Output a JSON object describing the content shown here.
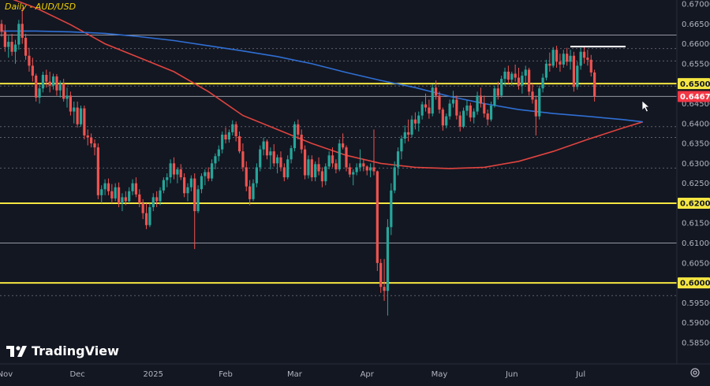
{
  "title": "Daily - AUD/USD",
  "brand": {
    "name": "TradingView"
  },
  "icons": {
    "logo": "tradingview-logo-icon",
    "settings": "settings-gear-icon",
    "cursor": "mouse-cursor-icon"
  },
  "colors": {
    "background": "#131722",
    "up": "#26a69a",
    "down": "#ef5350",
    "ma_red": "#e0443f",
    "ma_blue": "#2f6fd4",
    "yellow_line": "#f5e642",
    "white_line": "#ffffff",
    "axis_text": "#b2b5be"
  },
  "chart_data": {
    "type": "candlestick",
    "timeframe": "Daily",
    "symbol": "AUD/USD",
    "y_axis": {
      "min": 0.5835,
      "max": 0.6715,
      "ticks": [
        "0.67000",
        "0.66500",
        "0.66000",
        "0.65500",
        "0.65000",
        "0.64500",
        "0.64000",
        "0.63500",
        "0.63000",
        "0.62500",
        "0.62000",
        "0.61500",
        "0.61000",
        "0.60500",
        "0.60000",
        "0.59500",
        "0.59000",
        "0.58500"
      ]
    },
    "x_axis": {
      "labels": [
        {
          "label": "Nov",
          "index": 1
        },
        {
          "label": "Dec",
          "index": 22
        },
        {
          "label": "2025",
          "index": 44
        },
        {
          "label": "Feb",
          "index": 65
        },
        {
          "label": "Mar",
          "index": 85
        },
        {
          "label": "Apr",
          "index": 106
        },
        {
          "label": "May",
          "index": 127
        },
        {
          "label": "Jun",
          "index": 148
        },
        {
          "label": "Jul",
          "index": 168
        }
      ]
    },
    "price_badges": [
      {
        "label": "0.65000",
        "value": 0.65,
        "style": "yellow"
      },
      {
        "label": "0.64678",
        "value": 0.64678,
        "style": "red"
      },
      {
        "label": "0.62000",
        "value": 0.62,
        "style": "yellow"
      },
      {
        "label": "0.60000",
        "value": 0.6,
        "style": "yellow"
      }
    ],
    "horizontal_levels": [
      {
        "value": 0.65,
        "kind": "yellow"
      },
      {
        "value": 0.62,
        "kind": "yellow"
      },
      {
        "value": 0.6,
        "kind": "yellow"
      },
      {
        "value": 0.6622,
        "kind": "white-thin"
      },
      {
        "value": 0.6588,
        "kind": "dotted"
      },
      {
        "value": 0.6557,
        "kind": "dotted"
      },
      {
        "value": 0.6494,
        "kind": "dotted"
      },
      {
        "value": 0.6468,
        "kind": "white-thin"
      },
      {
        "value": 0.6392,
        "kind": "dotted"
      },
      {
        "value": 0.6365,
        "kind": "dotted"
      },
      {
        "value": 0.6288,
        "kind": "dotted"
      },
      {
        "value": 0.61,
        "kind": "white-thin"
      },
      {
        "value": 0.5968,
        "kind": "dotted"
      }
    ],
    "resistance_segment": {
      "from_index": 165,
      "to_index": 181,
      "value": 0.6593
    },
    "ohlc": [
      [
        0.665,
        0.666,
        0.6618,
        0.663
      ],
      [
        0.663,
        0.6648,
        0.658,
        0.6592
      ],
      [
        0.6592,
        0.662,
        0.6565,
        0.6605
      ],
      [
        0.6605,
        0.6625,
        0.657,
        0.658
      ],
      [
        0.658,
        0.661,
        0.655,
        0.6598
      ],
      [
        0.6598,
        0.666,
        0.6585,
        0.665
      ],
      [
        0.665,
        0.669,
        0.66,
        0.6615
      ],
      [
        0.6615,
        0.6625,
        0.656,
        0.657
      ],
      [
        0.657,
        0.659,
        0.653,
        0.6545
      ],
      [
        0.6545,
        0.6565,
        0.6505,
        0.652
      ],
      [
        0.652,
        0.6525,
        0.6455,
        0.6465
      ],
      [
        0.6465,
        0.65,
        0.645,
        0.6488
      ],
      [
        0.6488,
        0.653,
        0.6478,
        0.6522
      ],
      [
        0.6522,
        0.6535,
        0.649,
        0.6505
      ],
      [
        0.6505,
        0.653,
        0.6478,
        0.6495
      ],
      [
        0.6495,
        0.6525,
        0.6485,
        0.6518
      ],
      [
        0.6518,
        0.6524,
        0.647,
        0.6483
      ],
      [
        0.6483,
        0.6508,
        0.6465,
        0.65
      ],
      [
        0.65,
        0.6512,
        0.6455,
        0.6462
      ],
      [
        0.6462,
        0.649,
        0.644,
        0.647
      ],
      [
        0.647,
        0.648,
        0.642,
        0.643
      ],
      [
        0.643,
        0.6455,
        0.64,
        0.644
      ],
      [
        0.644,
        0.6455,
        0.639,
        0.6398
      ],
      [
        0.6398,
        0.6445,
        0.6392,
        0.6438
      ],
      [
        0.6438,
        0.6445,
        0.636,
        0.637
      ],
      [
        0.637,
        0.6385,
        0.6345,
        0.6365
      ],
      [
        0.6365,
        0.6375,
        0.634,
        0.635
      ],
      [
        0.635,
        0.636,
        0.632,
        0.634
      ],
      [
        0.634,
        0.635,
        0.621,
        0.622
      ],
      [
        0.622,
        0.6245,
        0.62,
        0.6235
      ],
      [
        0.6235,
        0.626,
        0.622,
        0.625
      ],
      [
        0.625,
        0.6262,
        0.622,
        0.623
      ],
      [
        0.623,
        0.6248,
        0.62,
        0.6212
      ],
      [
        0.6212,
        0.625,
        0.6205,
        0.624
      ],
      [
        0.624,
        0.6252,
        0.619,
        0.62
      ],
      [
        0.62,
        0.6225,
        0.618,
        0.6215
      ],
      [
        0.6215,
        0.623,
        0.6195,
        0.6205
      ],
      [
        0.6205,
        0.624,
        0.62,
        0.623
      ],
      [
        0.623,
        0.626,
        0.622,
        0.625
      ],
      [
        0.625,
        0.6265,
        0.6215,
        0.6222
      ],
      [
        0.6222,
        0.6235,
        0.619,
        0.62
      ],
      [
        0.62,
        0.621,
        0.616,
        0.6175
      ],
      [
        0.6175,
        0.62,
        0.6135,
        0.6145
      ],
      [
        0.6145,
        0.62,
        0.614,
        0.619
      ],
      [
        0.619,
        0.6225,
        0.618,
        0.6215
      ],
      [
        0.6215,
        0.623,
        0.619,
        0.6205
      ],
      [
        0.6205,
        0.624,
        0.6195,
        0.6232
      ],
      [
        0.6232,
        0.6265,
        0.6225,
        0.6258
      ],
      [
        0.6258,
        0.6275,
        0.624,
        0.6265
      ],
      [
        0.6265,
        0.631,
        0.625,
        0.63
      ],
      [
        0.63,
        0.6315,
        0.626,
        0.6272
      ],
      [
        0.6272,
        0.629,
        0.625,
        0.6285
      ],
      [
        0.6285,
        0.6298,
        0.6258,
        0.6265
      ],
      [
        0.6265,
        0.6275,
        0.6215,
        0.6225
      ],
      [
        0.6225,
        0.625,
        0.6205,
        0.624
      ],
      [
        0.624,
        0.627,
        0.623,
        0.6262
      ],
      [
        0.6262,
        0.6275,
        0.6085,
        0.618
      ],
      [
        0.618,
        0.6245,
        0.6175,
        0.6235
      ],
      [
        0.6235,
        0.6275,
        0.6225,
        0.6268
      ],
      [
        0.6268,
        0.6285,
        0.6245,
        0.6278
      ],
      [
        0.6278,
        0.629,
        0.6255,
        0.6262
      ],
      [
        0.6262,
        0.631,
        0.6255,
        0.63
      ],
      [
        0.63,
        0.6325,
        0.6285,
        0.6318
      ],
      [
        0.6318,
        0.6345,
        0.6305,
        0.6335
      ],
      [
        0.6335,
        0.638,
        0.6325,
        0.6372
      ],
      [
        0.6372,
        0.639,
        0.635,
        0.636
      ],
      [
        0.636,
        0.6385,
        0.6352,
        0.6378
      ],
      [
        0.6378,
        0.6408,
        0.637,
        0.6398
      ],
      [
        0.6398,
        0.6405,
        0.6355,
        0.6368
      ],
      [
        0.6368,
        0.638,
        0.6325,
        0.633
      ],
      [
        0.633,
        0.635,
        0.628,
        0.629
      ],
      [
        0.629,
        0.6305,
        0.623,
        0.6242
      ],
      [
        0.6242,
        0.6258,
        0.6195,
        0.621
      ],
      [
        0.621,
        0.626,
        0.6205,
        0.625
      ],
      [
        0.625,
        0.63,
        0.624,
        0.629
      ],
      [
        0.629,
        0.6345,
        0.628,
        0.6335
      ],
      [
        0.6335,
        0.6365,
        0.632,
        0.6355
      ],
      [
        0.6355,
        0.636,
        0.631,
        0.632
      ],
      [
        0.632,
        0.634,
        0.6285,
        0.633
      ],
      [
        0.633,
        0.6348,
        0.6292,
        0.63
      ],
      [
        0.63,
        0.6322,
        0.6275,
        0.6315
      ],
      [
        0.6315,
        0.633,
        0.628,
        0.629
      ],
      [
        0.629,
        0.63,
        0.6255,
        0.6265
      ],
      [
        0.6265,
        0.632,
        0.626,
        0.631
      ],
      [
        0.631,
        0.6345,
        0.63,
        0.6338
      ],
      [
        0.6338,
        0.6405,
        0.633,
        0.6398
      ],
      [
        0.6398,
        0.641,
        0.636,
        0.6372
      ],
      [
        0.6372,
        0.6385,
        0.6325,
        0.6335
      ],
      [
        0.6335,
        0.6345,
        0.626,
        0.627
      ],
      [
        0.627,
        0.632,
        0.6262,
        0.631
      ],
      [
        0.631,
        0.632,
        0.6255,
        0.6265
      ],
      [
        0.6265,
        0.6305,
        0.6255,
        0.6298
      ],
      [
        0.6298,
        0.6315,
        0.627,
        0.628
      ],
      [
        0.628,
        0.629,
        0.624,
        0.6255
      ],
      [
        0.6255,
        0.63,
        0.6245,
        0.6292
      ],
      [
        0.6292,
        0.633,
        0.6285,
        0.632
      ],
      [
        0.632,
        0.634,
        0.629,
        0.63
      ],
      [
        0.63,
        0.631,
        0.6275,
        0.6285
      ],
      [
        0.6285,
        0.636,
        0.628,
        0.635
      ],
      [
        0.635,
        0.6375,
        0.6335,
        0.634
      ],
      [
        0.634,
        0.6345,
        0.628,
        0.629
      ],
      [
        0.629,
        0.63,
        0.6265,
        0.6272
      ],
      [
        0.6272,
        0.6285,
        0.6245,
        0.6278
      ],
      [
        0.6278,
        0.63,
        0.627,
        0.629
      ],
      [
        0.629,
        0.6335,
        0.628,
        0.63
      ],
      [
        0.63,
        0.631,
        0.628,
        0.6292
      ],
      [
        0.6292,
        0.6295,
        0.627,
        0.6282
      ],
      [
        0.6282,
        0.63,
        0.6265,
        0.629
      ],
      [
        0.629,
        0.6385,
        0.627,
        0.628
      ],
      [
        0.628,
        0.6282,
        0.603,
        0.605
      ],
      [
        0.605,
        0.606,
        0.5975,
        0.599
      ],
      [
        0.599,
        0.606,
        0.5955,
        0.598
      ],
      [
        0.598,
        0.616,
        0.5918,
        0.614
      ],
      [
        0.614,
        0.625,
        0.612,
        0.6232
      ],
      [
        0.6232,
        0.6305,
        0.6225,
        0.629
      ],
      [
        0.629,
        0.634,
        0.627,
        0.633
      ],
      [
        0.633,
        0.637,
        0.631,
        0.6362
      ],
      [
        0.6362,
        0.6395,
        0.635,
        0.6378
      ],
      [
        0.6378,
        0.641,
        0.6355,
        0.6372
      ],
      [
        0.6372,
        0.642,
        0.6365,
        0.641
      ],
      [
        0.641,
        0.6428,
        0.6385,
        0.64
      ],
      [
        0.64,
        0.643,
        0.638,
        0.642
      ],
      [
        0.642,
        0.6455,
        0.641,
        0.6448
      ],
      [
        0.6448,
        0.6475,
        0.643,
        0.644
      ],
      [
        0.644,
        0.646,
        0.6412,
        0.6425
      ],
      [
        0.6425,
        0.6498,
        0.6418,
        0.649
      ],
      [
        0.649,
        0.6508,
        0.646,
        0.647
      ],
      [
        0.647,
        0.648,
        0.6425,
        0.6435
      ],
      [
        0.6435,
        0.644,
        0.6382,
        0.6395
      ],
      [
        0.6395,
        0.6425,
        0.6388,
        0.6418
      ],
      [
        0.6418,
        0.646,
        0.641,
        0.645
      ],
      [
        0.645,
        0.6482,
        0.644,
        0.646
      ],
      [
        0.646,
        0.647,
        0.641,
        0.642
      ],
      [
        0.642,
        0.643,
        0.638,
        0.6392
      ],
      [
        0.6392,
        0.644,
        0.6388,
        0.6432
      ],
      [
        0.6432,
        0.6458,
        0.642,
        0.6445
      ],
      [
        0.6445,
        0.6452,
        0.6405,
        0.6415
      ],
      [
        0.6415,
        0.6438,
        0.64,
        0.643
      ],
      [
        0.643,
        0.648,
        0.6422,
        0.647
      ],
      [
        0.647,
        0.649,
        0.644,
        0.645
      ],
      [
        0.645,
        0.647,
        0.6415,
        0.6425
      ],
      [
        0.6425,
        0.6435,
        0.6395,
        0.641
      ],
      [
        0.641,
        0.6455,
        0.6405,
        0.6445
      ],
      [
        0.6445,
        0.6495,
        0.644,
        0.6488
      ],
      [
        0.6488,
        0.6505,
        0.646,
        0.647
      ],
      [
        0.647,
        0.652,
        0.6465,
        0.6512
      ],
      [
        0.6512,
        0.654,
        0.6495,
        0.653
      ],
      [
        0.653,
        0.6545,
        0.65,
        0.651
      ],
      [
        0.651,
        0.653,
        0.6495,
        0.6525
      ],
      [
        0.6525,
        0.6548,
        0.6505,
        0.6515
      ],
      [
        0.6515,
        0.654,
        0.6485,
        0.6495
      ],
      [
        0.6495,
        0.653,
        0.6475,
        0.652
      ],
      [
        0.652,
        0.6545,
        0.65,
        0.6535
      ],
      [
        0.6535,
        0.654,
        0.647,
        0.648
      ],
      [
        0.648,
        0.65,
        0.645,
        0.646
      ],
      [
        0.646,
        0.647,
        0.637,
        0.6418
      ],
      [
        0.6418,
        0.6495,
        0.641,
        0.6488
      ],
      [
        0.6488,
        0.6525,
        0.6478,
        0.6515
      ],
      [
        0.6515,
        0.656,
        0.6508,
        0.655
      ],
      [
        0.655,
        0.6578,
        0.653,
        0.6545
      ],
      [
        0.6545,
        0.6592,
        0.654,
        0.6585
      ],
      [
        0.6585,
        0.6595,
        0.654,
        0.6555
      ],
      [
        0.6555,
        0.6575,
        0.653,
        0.6548
      ],
      [
        0.6548,
        0.6585,
        0.654,
        0.6575
      ],
      [
        0.6575,
        0.659,
        0.6545,
        0.6555
      ],
      [
        0.6555,
        0.6585,
        0.6535,
        0.657
      ],
      [
        0.657,
        0.658,
        0.648,
        0.6492
      ],
      [
        0.6492,
        0.6555,
        0.6485,
        0.6545
      ],
      [
        0.6545,
        0.659,
        0.6535,
        0.658
      ],
      [
        0.658,
        0.6593,
        0.655,
        0.6565
      ],
      [
        0.6565,
        0.6585,
        0.6545,
        0.656
      ],
      [
        0.656,
        0.6572,
        0.6518,
        0.6528
      ],
      [
        0.6528,
        0.6535,
        0.6455,
        0.6468
      ]
    ],
    "ma_red": [
      [
        0,
        0.6722
      ],
      [
        10,
        0.669
      ],
      [
        20,
        0.6648
      ],
      [
        30,
        0.66
      ],
      [
        40,
        0.6565
      ],
      [
        50,
        0.653
      ],
      [
        60,
        0.648
      ],
      [
        70,
        0.642
      ],
      [
        80,
        0.6385
      ],
      [
        90,
        0.635
      ],
      [
        100,
        0.632
      ],
      [
        110,
        0.63
      ],
      [
        120,
        0.629
      ],
      [
        130,
        0.6287
      ],
      [
        140,
        0.629
      ],
      [
        150,
        0.6305
      ],
      [
        160,
        0.633
      ],
      [
        170,
        0.636
      ],
      [
        180,
        0.6388
      ],
      [
        186,
        0.6404
      ]
    ],
    "ma_blue": [
      [
        0,
        0.6632
      ],
      [
        10,
        0.6632
      ],
      [
        20,
        0.663
      ],
      [
        30,
        0.6626
      ],
      [
        40,
        0.6618
      ],
      [
        50,
        0.6608
      ],
      [
        60,
        0.6595
      ],
      [
        70,
        0.6582
      ],
      [
        80,
        0.6568
      ],
      [
        90,
        0.655
      ],
      [
        100,
        0.6528
      ],
      [
        110,
        0.6508
      ],
      [
        120,
        0.649
      ],
      [
        130,
        0.6468
      ],
      [
        140,
        0.645
      ],
      [
        150,
        0.6435
      ],
      [
        160,
        0.6425
      ],
      [
        170,
        0.6418
      ],
      [
        180,
        0.641
      ],
      [
        186,
        0.6404
      ]
    ]
  }
}
